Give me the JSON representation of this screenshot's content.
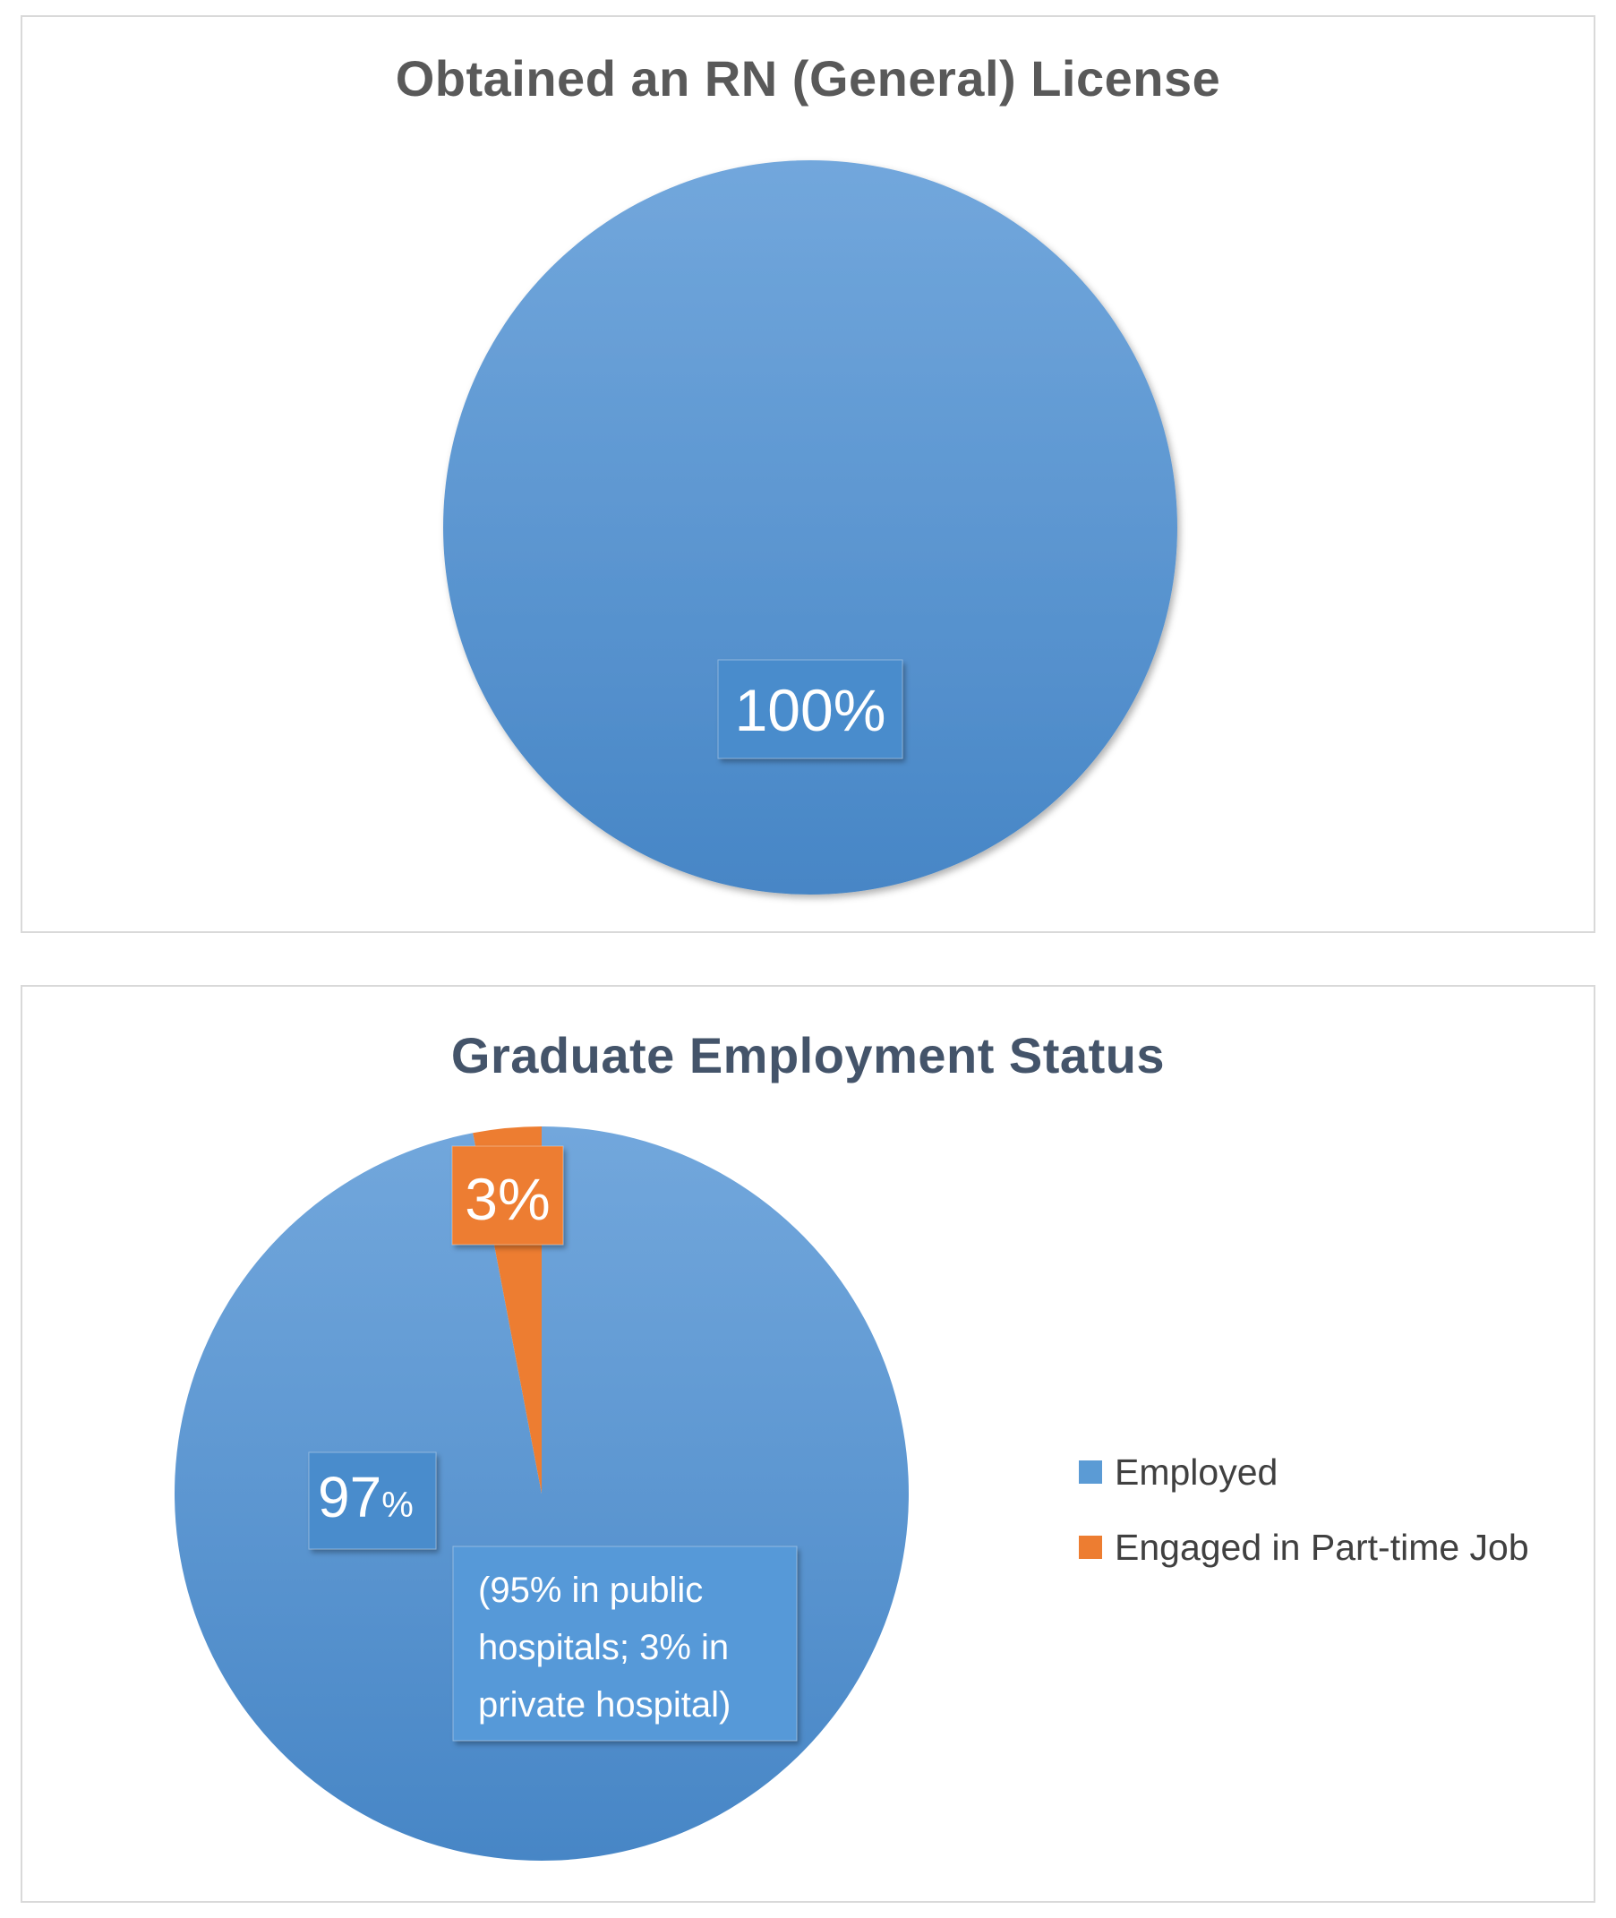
{
  "chart_data": [
    {
      "type": "pie",
      "title": "Obtained an RN (General) License",
      "categories": [
        "Obtained an RN (General) License"
      ],
      "values": [
        100
      ],
      "data_labels": [
        "100%"
      ],
      "colors": [
        "#5b9bd5"
      ],
      "legend": "none"
    },
    {
      "type": "pie",
      "title": "Graduate Employment Status",
      "categories": [
        "Employed",
        "Engaged in Part-time Job"
      ],
      "values": [
        97,
        3
      ],
      "data_labels": [
        "97%",
        "3%"
      ],
      "annotation": [
        "(95% in public",
        "hospitals; 3% in",
        "private hospital)"
      ],
      "colors": [
        "#5b9bd5",
        "#ed7d31"
      ],
      "legend": "right"
    }
  ]
}
